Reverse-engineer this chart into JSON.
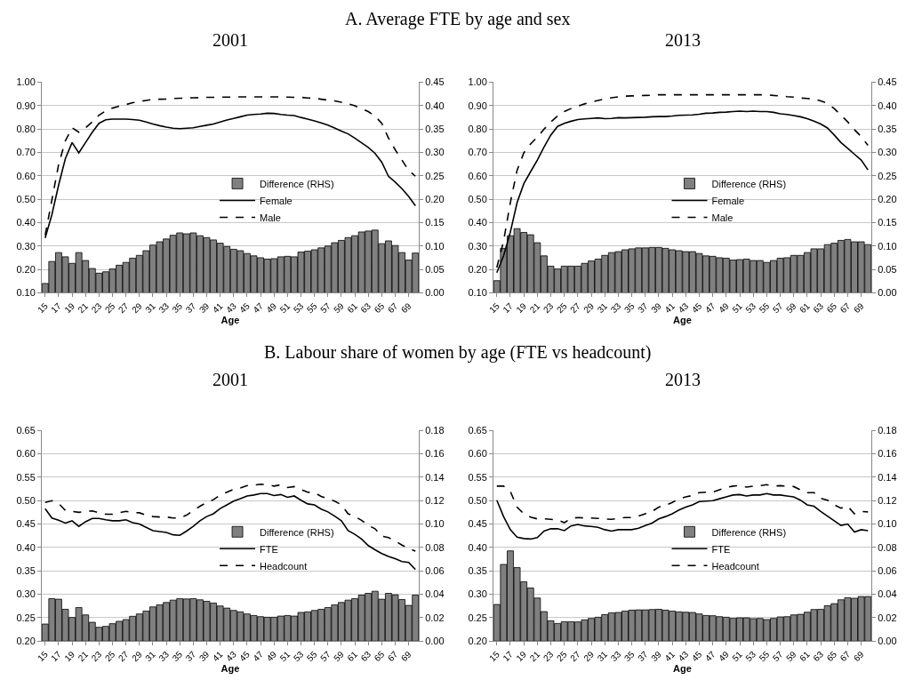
{
  "chart_data": [
    {
      "type": "line",
      "title": "A. Average FTE by age and sex",
      "subtitle": "2001",
      "xlabel": "Age",
      "grid": "y",
      "legend": "center",
      "categories": [
        "15",
        null,
        "17",
        null,
        "19",
        null,
        "21",
        null,
        "23",
        null,
        "25",
        null,
        "27",
        null,
        "29",
        null,
        "31",
        null,
        "33",
        null,
        "35",
        null,
        "37",
        null,
        "39",
        null,
        "41",
        null,
        "43",
        null,
        "45",
        null,
        "47",
        null,
        "49",
        null,
        "51",
        null,
        "53",
        null,
        "55",
        null,
        "57",
        null,
        "59",
        null,
        "61",
        null,
        "63",
        null,
        "65",
        null,
        "67",
        null,
        "69",
        null
      ],
      "series": [
        {
          "name": "Difference (RHS)",
          "type": "bar",
          "axis": "y2",
          "color": "#808080",
          "values": [
            0.02,
            0.067,
            0.086,
            0.077,
            0.063,
            0.086,
            0.069,
            0.052,
            0.042,
            0.045,
            0.051,
            0.059,
            0.065,
            0.074,
            0.08,
            0.09,
            0.102,
            0.109,
            0.115,
            0.123,
            0.128,
            0.126,
            0.128,
            0.122,
            0.118,
            0.113,
            0.106,
            0.099,
            0.093,
            0.09,
            0.084,
            0.079,
            0.075,
            0.072,
            0.073,
            0.077,
            0.078,
            0.077,
            0.087,
            0.089,
            0.092,
            0.096,
            0.1,
            0.107,
            0.112,
            0.118,
            0.122,
            0.13,
            0.132,
            0.134,
            0.105,
            0.111,
            0.101,
            0.086,
            0.07,
            0.085
          ]
        },
        {
          "name": "Female",
          "line_style": "solid",
          "color": "#000000",
          "values": [
            0.334,
            0.434,
            0.56,
            0.673,
            0.742,
            0.698,
            0.742,
            0.786,
            0.824,
            0.839,
            0.842,
            0.842,
            0.842,
            0.84,
            0.837,
            0.83,
            0.821,
            0.814,
            0.808,
            0.803,
            0.801,
            0.803,
            0.805,
            0.811,
            0.816,
            0.821,
            0.83,
            0.838,
            0.845,
            0.852,
            0.859,
            0.862,
            0.864,
            0.867,
            0.866,
            0.862,
            0.859,
            0.857,
            0.849,
            0.842,
            0.834,
            0.826,
            0.816,
            0.804,
            0.791,
            0.779,
            0.761,
            0.741,
            0.721,
            0.696,
            0.658,
            0.598,
            0.573,
            0.545,
            0.512,
            0.472
          ]
        },
        {
          "name": "Male",
          "line_style": "dashed",
          "color": "#000000",
          "values": [
            0.346,
            0.497,
            0.648,
            0.749,
            0.805,
            0.786,
            0.805,
            0.83,
            0.859,
            0.877,
            0.889,
            0.897,
            0.904,
            0.912,
            0.917,
            0.922,
            0.926,
            0.927,
            0.928,
            0.93,
            0.931,
            0.932,
            0.933,
            0.934,
            0.935,
            0.935,
            0.936,
            0.936,
            0.936,
            0.937,
            0.937,
            0.937,
            0.937,
            0.937,
            0.937,
            0.937,
            0.936,
            0.935,
            0.935,
            0.932,
            0.931,
            0.927,
            0.923,
            0.92,
            0.914,
            0.908,
            0.899,
            0.887,
            0.874,
            0.855,
            0.824,
            0.761,
            0.711,
            0.667,
            0.623,
            0.598
          ]
        }
      ],
      "ylim": [
        0.1,
        1.0
      ],
      "yticks": [
        {
          "value": 0.1,
          "label": "0.10"
        },
        {
          "value": 0.2,
          "label": "0.20"
        },
        {
          "value": 0.3,
          "label": "0.30"
        },
        {
          "value": 0.4,
          "label": "0.40"
        },
        {
          "value": 0.5,
          "label": "0.50"
        },
        {
          "value": 0.6,
          "label": "0.60"
        },
        {
          "value": 0.7,
          "label": "0.70"
        },
        {
          "value": 0.8,
          "label": "0.80"
        },
        {
          "value": 0.9,
          "label": "0.90"
        },
        {
          "value": 1.0,
          "label": "1.00"
        }
      ],
      "y2lim": [
        0,
        0.45
      ],
      "y2ticks": [
        {
          "value": 0,
          "label": "0.00"
        },
        {
          "value": 0.05,
          "label": "0.05"
        },
        {
          "value": 0.1,
          "label": "0.10"
        },
        {
          "value": 0.15,
          "label": "0.15"
        },
        {
          "value": 0.2,
          "label": "0.20"
        },
        {
          "value": 0.25,
          "label": "0.25"
        },
        {
          "value": 0.3,
          "label": "0.30"
        },
        {
          "value": 0.35,
          "label": "0.35"
        },
        {
          "value": 0.4,
          "label": "0.40"
        },
        {
          "value": 0.45,
          "label": "0.45"
        }
      ]
    },
    {
      "type": "line",
      "subtitle": "2013",
      "xlabel": "Age",
      "grid": "y",
      "legend": "center",
      "categories": [
        "15",
        null,
        "17",
        null,
        "19",
        null,
        "21",
        null,
        "23",
        null,
        "25",
        null,
        "27",
        null,
        "29",
        null,
        "31",
        null,
        "33",
        null,
        "35",
        null,
        "37",
        null,
        "39",
        null,
        "41",
        null,
        "43",
        null,
        "45",
        null,
        "47",
        null,
        "49",
        null,
        "51",
        null,
        "53",
        null,
        "55",
        null,
        "57",
        null,
        "59",
        null,
        "61",
        null,
        "63",
        null,
        "65",
        null,
        "67",
        null,
        "69",
        null
      ],
      "series": [
        {
          "name": "Difference (RHS)",
          "type": "bar",
          "axis": "y2",
          "color": "#808080",
          "values": [
            0.026,
            0.095,
            0.122,
            0.137,
            0.129,
            0.124,
            0.107,
            0.079,
            0.057,
            0.051,
            0.057,
            0.057,
            0.057,
            0.063,
            0.068,
            0.072,
            0.08,
            0.086,
            0.088,
            0.092,
            0.094,
            0.096,
            0.096,
            0.097,
            0.097,
            0.095,
            0.092,
            0.09,
            0.088,
            0.088,
            0.084,
            0.079,
            0.078,
            0.075,
            0.074,
            0.07,
            0.071,
            0.072,
            0.069,
            0.069,
            0.065,
            0.069,
            0.074,
            0.075,
            0.08,
            0.08,
            0.086,
            0.094,
            0.094,
            0.103,
            0.106,
            0.112,
            0.114,
            0.109,
            0.109,
            0.103
          ]
        },
        {
          "name": "Female",
          "line_style": "solid",
          "color": "#000000",
          "values": [
            0.186,
            0.258,
            0.359,
            0.485,
            0.566,
            0.617,
            0.667,
            0.723,
            0.774,
            0.811,
            0.824,
            0.833,
            0.84,
            0.843,
            0.845,
            0.847,
            0.844,
            0.845,
            0.848,
            0.847,
            0.848,
            0.849,
            0.85,
            0.852,
            0.853,
            0.853,
            0.855,
            0.858,
            0.859,
            0.86,
            0.863,
            0.867,
            0.868,
            0.871,
            0.872,
            0.874,
            0.876,
            0.874,
            0.876,
            0.874,
            0.874,
            0.871,
            0.865,
            0.862,
            0.857,
            0.852,
            0.844,
            0.833,
            0.821,
            0.804,
            0.774,
            0.742,
            0.717,
            0.692,
            0.667,
            0.625
          ]
        },
        {
          "name": "Male",
          "line_style": "dashed",
          "color": "#000000",
          "values": [
            0.208,
            0.321,
            0.485,
            0.623,
            0.698,
            0.736,
            0.765,
            0.799,
            0.83,
            0.855,
            0.874,
            0.887,
            0.897,
            0.907,
            0.914,
            0.922,
            0.928,
            0.933,
            0.937,
            0.94,
            0.941,
            0.942,
            0.943,
            0.944,
            0.946,
            0.946,
            0.946,
            0.946,
            0.946,
            0.946,
            0.946,
            0.946,
            0.946,
            0.946,
            0.946,
            0.946,
            0.946,
            0.946,
            0.946,
            0.946,
            0.946,
            0.943,
            0.941,
            0.938,
            0.936,
            0.932,
            0.93,
            0.927,
            0.92,
            0.909,
            0.887,
            0.859,
            0.83,
            0.797,
            0.767,
            0.73
          ]
        }
      ],
      "ylim": [
        0.1,
        1.0
      ],
      "yticks": [
        {
          "value": 0.1,
          "label": "0.10"
        },
        {
          "value": 0.2,
          "label": "0.20"
        },
        {
          "value": 0.3,
          "label": "0.30"
        },
        {
          "value": 0.4,
          "label": "0.40"
        },
        {
          "value": 0.5,
          "label": "0.50"
        },
        {
          "value": 0.6,
          "label": "0.60"
        },
        {
          "value": 0.7,
          "label": "0.70"
        },
        {
          "value": 0.8,
          "label": "0.80"
        },
        {
          "value": 0.9,
          "label": "0.90"
        },
        {
          "value": 1.0,
          "label": "1.00"
        }
      ],
      "y2lim": [
        0,
        0.45
      ],
      "y2ticks": [
        {
          "value": 0,
          "label": "0.00"
        },
        {
          "value": 0.05,
          "label": "0.05"
        },
        {
          "value": 0.1,
          "label": "0.10"
        },
        {
          "value": 0.15,
          "label": "0.15"
        },
        {
          "value": 0.2,
          "label": "0.20"
        },
        {
          "value": 0.25,
          "label": "0.25"
        },
        {
          "value": 0.3,
          "label": "0.30"
        },
        {
          "value": 0.35,
          "label": "0.35"
        },
        {
          "value": 0.4,
          "label": "0.40"
        },
        {
          "value": 0.45,
          "label": "0.45"
        }
      ]
    },
    {
      "type": "line",
      "title": "B. Labour share of women by age (FTE vs headcount)",
      "subtitle": "2001",
      "xlabel": "Age",
      "grid": "y",
      "legend": "center",
      "categories": [
        "15",
        null,
        "17",
        null,
        "19",
        null,
        "21",
        null,
        "23",
        null,
        "25",
        null,
        "27",
        null,
        "29",
        null,
        "31",
        null,
        "33",
        null,
        "35",
        null,
        "37",
        null,
        "39",
        null,
        "41",
        null,
        "43",
        null,
        "45",
        null,
        "47",
        null,
        "49",
        null,
        "51",
        null,
        "53",
        null,
        "55",
        null,
        "57",
        null,
        "59",
        null,
        "61",
        null,
        "63",
        null,
        "65",
        null,
        "67",
        null,
        "69",
        null
      ],
      "series": [
        {
          "name": "Difference (RHS)",
          "type": "bar",
          "axis": "y2",
          "color": "#808080",
          "values": [
            0.0146,
            0.0363,
            0.0358,
            0.0272,
            0.0202,
            0.0287,
            0.0224,
            0.0161,
            0.0118,
            0.0126,
            0.0149,
            0.0169,
            0.0184,
            0.0212,
            0.0232,
            0.0257,
            0.0292,
            0.031,
            0.033,
            0.035,
            0.0363,
            0.036,
            0.0363,
            0.0353,
            0.034,
            0.0325,
            0.03,
            0.0282,
            0.0262,
            0.025,
            0.0232,
            0.0219,
            0.0209,
            0.0204,
            0.0204,
            0.0214,
            0.0219,
            0.0214,
            0.0245,
            0.025,
            0.0262,
            0.0272,
            0.0287,
            0.031,
            0.033,
            0.035,
            0.0363,
            0.0393,
            0.0408,
            0.0426,
            0.0358,
            0.0408,
            0.0396,
            0.0355,
            0.0305,
            0.0393
          ]
        },
        {
          "name": "FTE",
          "line_style": "solid",
          "color": "#000000",
          "values": [
            0.483,
            0.463,
            0.458,
            0.452,
            0.457,
            0.445,
            0.455,
            0.462,
            0.462,
            0.459,
            0.457,
            0.457,
            0.459,
            0.453,
            0.45,
            0.443,
            0.436,
            0.434,
            0.432,
            0.427,
            0.426,
            0.435,
            0.445,
            0.457,
            0.466,
            0.472,
            0.483,
            0.491,
            0.499,
            0.504,
            0.51,
            0.512,
            0.515,
            0.515,
            0.511,
            0.513,
            0.507,
            0.51,
            0.501,
            0.493,
            0.491,
            0.482,
            0.476,
            0.467,
            0.457,
            0.436,
            0.428,
            0.418,
            0.404,
            0.395,
            0.387,
            0.381,
            0.376,
            0.37,
            0.368,
            0.353
          ]
        },
        {
          "name": "Headcount",
          "line_style": "dashed",
          "color": "#000000",
          "values": [
            0.496,
            0.5,
            0.494,
            0.479,
            0.477,
            0.475,
            0.477,
            0.478,
            0.474,
            0.471,
            0.471,
            0.474,
            0.477,
            0.475,
            0.474,
            0.469,
            0.466,
            0.465,
            0.465,
            0.463,
            0.463,
            0.469,
            0.479,
            0.488,
            0.496,
            0.502,
            0.512,
            0.518,
            0.524,
            0.527,
            0.532,
            0.533,
            0.535,
            0.534,
            0.531,
            0.534,
            0.528,
            0.53,
            0.524,
            0.518,
            0.517,
            0.509,
            0.504,
            0.499,
            0.491,
            0.472,
            0.466,
            0.458,
            0.447,
            0.44,
            0.424,
            0.421,
            0.414,
            0.405,
            0.398,
            0.392
          ]
        }
      ],
      "ylim": [
        0.2,
        0.65
      ],
      "yticks": [
        {
          "value": 0.2,
          "label": "0.20"
        },
        {
          "value": 0.25,
          "label": "0.25"
        },
        {
          "value": 0.3,
          "label": "0.30"
        },
        {
          "value": 0.35,
          "label": "0.35"
        },
        {
          "value": 0.4,
          "label": "0.40"
        },
        {
          "value": 0.45,
          "label": "0.45"
        },
        {
          "value": 0.5,
          "label": "0.50"
        },
        {
          "value": 0.55,
          "label": "0.55"
        },
        {
          "value": 0.6,
          "label": "0.60"
        },
        {
          "value": 0.65,
          "label": "0.65"
        }
      ],
      "y2lim": [
        0,
        0.18
      ],
      "y2ticks": [
        {
          "value": 0,
          "label": "0.00"
        },
        {
          "value": 0.02,
          "label": "0.02"
        },
        {
          "value": 0.04,
          "label": "0.04"
        },
        {
          "value": 0.06,
          "label": "0.06"
        },
        {
          "value": 0.08,
          "label": "0.08"
        },
        {
          "value": 0.1,
          "label": "0.10"
        },
        {
          "value": 0.12,
          "label": "0.12"
        },
        {
          "value": 0.14,
          "label": "0.14"
        },
        {
          "value": 0.16,
          "label": "0.16"
        },
        {
          "value": 0.18,
          "label": "0.18"
        }
      ]
    },
    {
      "type": "line",
      "subtitle": "2013",
      "xlabel": "Age",
      "grid": "y",
      "legend": "center",
      "categories": [
        "15",
        null,
        "17",
        null,
        "19",
        null,
        "21",
        null,
        "23",
        null,
        "25",
        null,
        "27",
        null,
        "29",
        null,
        "31",
        null,
        "33",
        null,
        "35",
        null,
        "37",
        null,
        "39",
        null,
        "41",
        null,
        "43",
        null,
        "45",
        null,
        "47",
        null,
        "49",
        null,
        "51",
        null,
        "53",
        null,
        "55",
        null,
        "57",
        null,
        "59",
        null,
        "61",
        null,
        "63",
        null,
        "65",
        null,
        "67",
        null,
        "69",
        null
      ],
      "series": [
        {
          "name": "Difference (RHS)",
          "type": "bar",
          "axis": "y2",
          "color": "#808080",
          "values": [
            0.0313,
            0.0655,
            0.0771,
            0.0628,
            0.0507,
            0.0454,
            0.0368,
            0.0252,
            0.0174,
            0.0151,
            0.0166,
            0.0166,
            0.0164,
            0.0182,
            0.0194,
            0.0204,
            0.0227,
            0.0242,
            0.0245,
            0.0257,
            0.0265,
            0.0267,
            0.0267,
            0.027,
            0.0272,
            0.0265,
            0.0257,
            0.025,
            0.0247,
            0.0245,
            0.0232,
            0.0219,
            0.0217,
            0.0209,
            0.0204,
            0.0194,
            0.0199,
            0.0199,
            0.0192,
            0.0194,
            0.0184,
            0.0194,
            0.0207,
            0.0209,
            0.0224,
            0.0229,
            0.0247,
            0.027,
            0.0272,
            0.0303,
            0.032,
            0.0353,
            0.0371,
            0.0366,
            0.0381,
            0.0381
          ]
        },
        {
          "name": "FTE",
          "line_style": "solid",
          "color": "#000000",
          "values": [
            0.501,
            0.466,
            0.438,
            0.422,
            0.419,
            0.418,
            0.421,
            0.435,
            0.44,
            0.44,
            0.436,
            0.446,
            0.449,
            0.446,
            0.445,
            0.443,
            0.438,
            0.435,
            0.438,
            0.438,
            0.438,
            0.441,
            0.447,
            0.452,
            0.461,
            0.466,
            0.472,
            0.48,
            0.486,
            0.491,
            0.498,
            0.499,
            0.5,
            0.504,
            0.508,
            0.512,
            0.513,
            0.51,
            0.512,
            0.512,
            0.515,
            0.512,
            0.512,
            0.51,
            0.508,
            0.501,
            0.491,
            0.488,
            0.477,
            0.467,
            0.457,
            0.447,
            0.45,
            0.433,
            0.438,
            0.436
          ]
        },
        {
          "name": "Headcount",
          "line_style": "dashed",
          "color": "#000000",
          "values": [
            0.531,
            0.531,
            0.52,
            0.486,
            0.472,
            0.465,
            0.461,
            0.461,
            0.46,
            0.459,
            0.453,
            0.462,
            0.464,
            0.463,
            0.463,
            0.462,
            0.461,
            0.46,
            0.462,
            0.464,
            0.464,
            0.467,
            0.472,
            0.477,
            0.486,
            0.49,
            0.496,
            0.504,
            0.508,
            0.511,
            0.517,
            0.518,
            0.518,
            0.523,
            0.528,
            0.531,
            0.532,
            0.529,
            0.531,
            0.532,
            0.534,
            0.531,
            0.532,
            0.531,
            0.53,
            0.523,
            0.517,
            0.517,
            0.505,
            0.501,
            0.491,
            0.484,
            0.488,
            0.472,
            0.477,
            0.476
          ]
        }
      ],
      "ylim": [
        0.2,
        0.65
      ],
      "yticks": [
        {
          "value": 0.2,
          "label": "0.20"
        },
        {
          "value": 0.25,
          "label": "0.25"
        },
        {
          "value": 0.3,
          "label": "0.30"
        },
        {
          "value": 0.35,
          "label": "0.35"
        },
        {
          "value": 0.4,
          "label": "0.40"
        },
        {
          "value": 0.45,
          "label": "0.45"
        },
        {
          "value": 0.5,
          "label": "0.50"
        },
        {
          "value": 0.55,
          "label": "0.55"
        },
        {
          "value": 0.6,
          "label": "0.60"
        },
        {
          "value": 0.65,
          "label": "0.65"
        }
      ],
      "y2lim": [
        0,
        0.18
      ],
      "y2ticks": [
        {
          "value": 0,
          "label": "0.00"
        },
        {
          "value": 0.02,
          "label": "0.02"
        },
        {
          "value": 0.04,
          "label": "0.04"
        },
        {
          "value": 0.06,
          "label": "0.06"
        },
        {
          "value": 0.08,
          "label": "0.08"
        },
        {
          "value": 0.1,
          "label": "0.10"
        },
        {
          "value": 0.12,
          "label": "0.12"
        },
        {
          "value": 0.14,
          "label": "0.14"
        },
        {
          "value": 0.16,
          "label": "0.16"
        },
        {
          "value": 0.18,
          "label": "0.18"
        }
      ]
    }
  ]
}
